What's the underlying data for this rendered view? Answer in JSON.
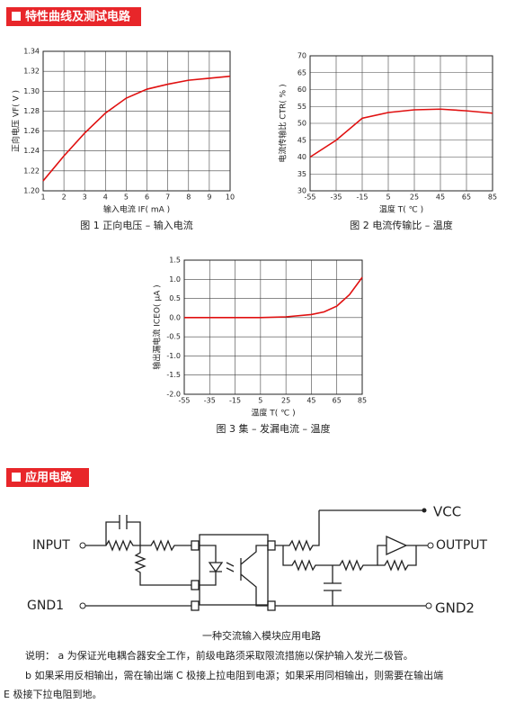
{
  "section1_title": "特性曲线及测试电路",
  "chart_data": [
    {
      "type": "line",
      "x": [
        1,
        2,
        3,
        4,
        5,
        6,
        7,
        8,
        9,
        10
      ],
      "values": [
        1.21,
        1.235,
        1.258,
        1.278,
        1.293,
        1.302,
        1.307,
        1.311,
        1.313,
        1.315
      ],
      "color": "#e01010",
      "xlim": [
        1,
        10
      ],
      "xticks": [
        1,
        2,
        3,
        4,
        5,
        6,
        7,
        8,
        9,
        10
      ],
      "ylim": [
        1.2,
        1.34
      ],
      "yticks": [
        {
          "value": 1.2,
          "label": "1.20"
        },
        1.22,
        1.24,
        1.26,
        1.28,
        {
          "value": 1.3,
          "label": "1.30"
        },
        1.32,
        1.34
      ],
      "grid": true,
      "x_label": "输入电流 IF( mA )",
      "y_label": "正向电压 VF( V )",
      "caption": "图 1 正向电压 – 输入电流"
    },
    {
      "type": "line",
      "x": [
        -55,
        -35,
        -15,
        5,
        25,
        45,
        65,
        85
      ],
      "values": [
        40,
        45,
        51.5,
        53.2,
        54,
        54.2,
        53.7,
        53
      ],
      "color": "#e01010",
      "xlim": [
        -55,
        85
      ],
      "xticks": [
        -55,
        -35,
        -15,
        5,
        25,
        45,
        65,
        85
      ],
      "ylim": [
        30,
        70
      ],
      "yticks": [
        30,
        35,
        40,
        45,
        50,
        55,
        60,
        65,
        70
      ],
      "grid": true,
      "x_label": "温度 T( ℃ )",
      "y_label": "电流传输比 CTR( % )",
      "caption": "图 2 电流传输比 – 温度"
    },
    {
      "type": "line",
      "x": [
        -55,
        -35,
        -15,
        5,
        25,
        45,
        55,
        65,
        75,
        85
      ],
      "values": [
        0,
        0,
        0,
        0,
        0.02,
        0.08,
        0.15,
        0.3,
        0.6,
        1.05
      ],
      "color": "#e01010",
      "xlim": [
        -55,
        85
      ],
      "xticks": [
        -55,
        -35,
        -15,
        5,
        25,
        45,
        65,
        85
      ],
      "ylim": [
        -2,
        1.5
      ],
      "yticks": [
        {
          "value": -2,
          "label": "-2.0"
        },
        -1.5,
        {
          "value": -1,
          "label": "-1.0"
        },
        -0.5,
        {
          "value": 0,
          "label": "0.0"
        },
        0.5,
        {
          "value": 1,
          "label": "1.0"
        },
        1.5
      ],
      "grid": true,
      "x_label": "温度 T( ℃ )",
      "y_label": "输出漏电流 ICEO( μA )",
      "caption": "图 3 集 – 发漏电流 – 温度"
    }
  ],
  "section2_title": "应用电路",
  "circuit": {
    "vcc": "VCC",
    "input": "INPUT",
    "output": "OUTPUT",
    "gnd1": "GND1",
    "gnd2": "GND2"
  },
  "caption": "一种交流输入模块应用电路",
  "notes": [
    "说明： a 为保证光电耦合器安全工作，前级电路须采取限流措施以保护输入发光二极管。",
    "b 如果采用反相输出，需在输出端 C 极接上拉电阻到电源；如果采用同相输出，则需要在输出端",
    "E 极接下拉电阻到地。"
  ]
}
